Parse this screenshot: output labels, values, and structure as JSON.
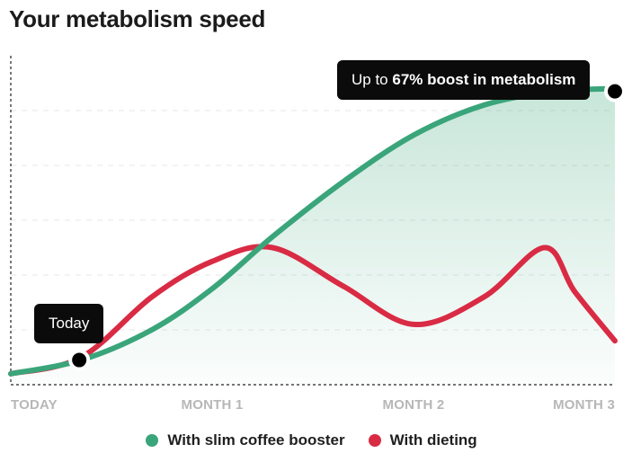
{
  "title": "Your metabolism speed",
  "callouts": {
    "today": "Today",
    "boost_prefix": "Up to ",
    "boost_value": "67% boost in metabolism",
    "boost_suffix": ""
  },
  "legend": [
    {
      "label": "With slim coffee booster",
      "color": "#3aa57a"
    },
    {
      "label": "With dieting",
      "color": "#d92b44"
    }
  ],
  "chart_data": {
    "type": "line",
    "title": "Your metabolism speed",
    "xlabel": "",
    "ylabel": "",
    "x_categories": [
      "TODAY",
      "MONTH 1",
      "MONTH 2",
      "MONTH 3"
    ],
    "xlim": [
      0,
      3
    ],
    "ylim": [
      0,
      6
    ],
    "grid": true,
    "legend_position": "bottom",
    "area_fill_series": "With slim coffee booster",
    "series": [
      {
        "name": "With slim coffee booster",
        "color": "#3aa57a",
        "points": [
          [
            0,
            0.2
          ],
          [
            0.35,
            0.45
          ],
          [
            0.7,
            1.0
          ],
          [
            1.0,
            1.75
          ],
          [
            1.3,
            2.7
          ],
          [
            1.65,
            3.7
          ],
          [
            2.0,
            4.55
          ],
          [
            2.35,
            5.1
          ],
          [
            2.7,
            5.35
          ],
          [
            3.0,
            5.4
          ]
        ]
      },
      {
        "name": "With dieting",
        "color": "#d92b44",
        "points": [
          [
            0,
            0.2
          ],
          [
            0.35,
            0.5
          ],
          [
            0.7,
            1.6
          ],
          [
            1.0,
            2.25
          ],
          [
            1.3,
            2.5
          ],
          [
            1.65,
            1.8
          ],
          [
            2.0,
            1.1
          ],
          [
            2.35,
            1.6
          ],
          [
            2.65,
            2.5
          ],
          [
            2.8,
            1.7
          ],
          [
            3.0,
            0.8
          ]
        ]
      }
    ],
    "annotations": [
      {
        "label": "Today",
        "x": 0.34,
        "y": 0.45,
        "series": "With slim coffee booster"
      },
      {
        "label": "Up to 67% boost in metabolism",
        "x": 3.0,
        "y": 5.35,
        "series": "With slim coffee booster"
      }
    ]
  }
}
